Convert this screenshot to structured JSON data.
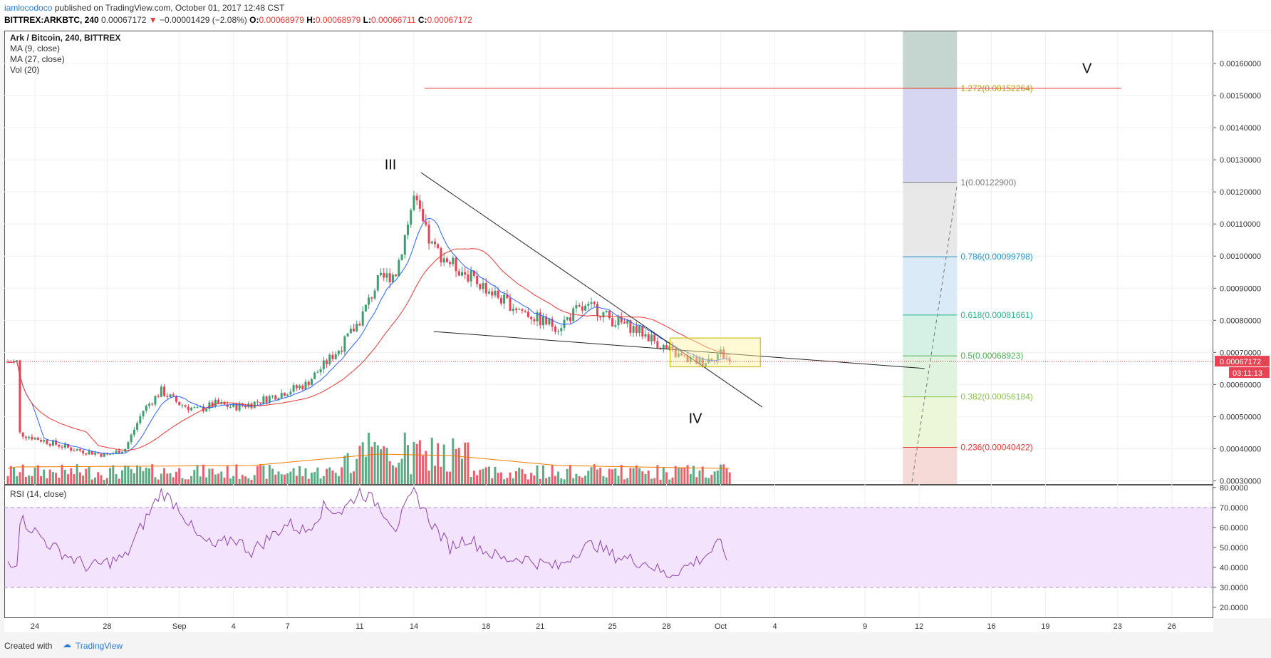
{
  "header": {
    "author": "iamlocodoco",
    "published": " published on TradingView.com, October 01, 2017 12:48 CST",
    "symbol": "BITTREX:ARKBTC, 240",
    "last": "0.00067172",
    "change": "−0.00001429 (−2.08%)",
    "o_label": "O:",
    "o": "0.00068979",
    "h_label": "H:",
    "h": "0.00068979",
    "l_label": "L:",
    "l": "0.00066711",
    "c_label": "C:",
    "c": "0.00067172"
  },
  "legend": {
    "title": "Ark / Bitcoin, 240, BITTREX",
    "ma9": "MA (9, close)",
    "ma27": "MA (27, close)",
    "vol": "Vol (20)",
    "rsi": "RSI (14, close)"
  },
  "price_tag": "0.00067172",
  "countdown": "03:11:13",
  "footer": {
    "created": "Created with",
    "brand": "TradingView"
  },
  "colors": {
    "up": "#3d9e6f",
    "down": "#e84354",
    "ma9": "#2962ff",
    "ma27": "#e53935",
    "vol_ma": "#f57c00",
    "rsi": "#8e44ad",
    "rsi_band": "#f3e3fc"
  },
  "chart_data": {
    "type": "candlestick",
    "price_axis": {
      "ticks": [
        "0.00160000",
        "0.00150000",
        "0.00140000",
        "0.00130000",
        "0.00120000",
        "0.00110000",
        "0.00100000",
        "0.00090000",
        "0.00080000",
        "0.00070000",
        "0.00060000",
        "0.00050000",
        "0.00040000",
        "0.00030000"
      ],
      "range": [
        0.00029,
        0.0017
      ]
    },
    "rsi_axis": {
      "ticks": [
        "80.0000",
        "70.0000",
        "60.0000",
        "50.0000",
        "40.0000",
        "30.0000",
        "20.0000"
      ],
      "range": [
        15,
        81
      ],
      "bands": [
        30,
        70
      ]
    },
    "x_ticks": [
      "24",
      "28",
      "Sep",
      "4",
      "7",
      "11",
      "14",
      "18",
      "21",
      "25",
      "28",
      "Oct",
      "4",
      "9",
      "12",
      "16",
      "19",
      "23",
      "26"
    ],
    "x_tick_days": [
      -7,
      -3,
      1,
      4,
      7,
      11,
      14,
      18,
      21,
      25,
      28,
      31,
      34,
      39,
      42,
      46,
      49,
      53,
      56
    ],
    "price_keyframes": [
      [
        -8,
        0.00045
      ],
      [
        -5,
        0.0004
      ],
      [
        -3,
        0.00038
      ],
      [
        -2,
        0.0004
      ],
      [
        -1,
        0.00052
      ],
      [
        0,
        0.00058
      ],
      [
        1,
        0.00054
      ],
      [
        2,
        0.00052
      ],
      [
        3,
        0.00054
      ],
      [
        4,
        0.00053
      ],
      [
        5,
        0.00054
      ],
      [
        6,
        0.00056
      ],
      [
        7,
        0.00058
      ],
      [
        8,
        0.0006
      ],
      [
        9,
        0.00066
      ],
      [
        10,
        0.00072
      ],
      [
        11,
        0.0008
      ],
      [
        12,
        0.00092
      ],
      [
        13,
        0.00095
      ],
      [
        14,
        0.00118
      ],
      [
        14.6,
        0.00108
      ],
      [
        15,
        0.00103
      ],
      [
        16,
        0.00098
      ],
      [
        17,
        0.00094
      ],
      [
        18,
        0.0009
      ],
      [
        19,
        0.00086
      ],
      [
        20,
        0.00083
      ],
      [
        21,
        0.0008
      ],
      [
        22,
        0.00078
      ],
      [
        23,
        0.00083
      ],
      [
        24,
        0.00084
      ],
      [
        25,
        0.0008
      ],
      [
        26,
        0.00078
      ],
      [
        27,
        0.00075
      ],
      [
        28,
        0.00071
      ],
      [
        29,
        0.00068
      ],
      [
        30,
        0.00067
      ],
      [
        31,
        0.0007
      ],
      [
        31.5,
        0.00067
      ]
    ],
    "rsi_keyframes": [
      [
        -8,
        66
      ],
      [
        -6,
        50
      ],
      [
        -4,
        40
      ],
      [
        -2,
        45
      ],
      [
        -1,
        62
      ],
      [
        0,
        78
      ],
      [
        1,
        70
      ],
      [
        2,
        55
      ],
      [
        3,
        50
      ],
      [
        4,
        55
      ],
      [
        5,
        48
      ],
      [
        6,
        55
      ],
      [
        7,
        62
      ],
      [
        8,
        58
      ],
      [
        9,
        70
      ],
      [
        10,
        68
      ],
      [
        11,
        78
      ],
      [
        12,
        72
      ],
      [
        13,
        60
      ],
      [
        14,
        78
      ],
      [
        15,
        62
      ],
      [
        16,
        50
      ],
      [
        17,
        55
      ],
      [
        18,
        48
      ],
      [
        19,
        44
      ],
      [
        20,
        45
      ],
      [
        21,
        42
      ],
      [
        22,
        40
      ],
      [
        23,
        48
      ],
      [
        24,
        52
      ],
      [
        25,
        46
      ],
      [
        26,
        44
      ],
      [
        27,
        42
      ],
      [
        28,
        36
      ],
      [
        29,
        40
      ],
      [
        30,
        45
      ],
      [
        31,
        52
      ],
      [
        31.5,
        43
      ]
    ],
    "annotations": [
      {
        "text": "III",
        "day": 12.7,
        "price": 0.00127
      },
      {
        "text": "IV",
        "day": 29.6,
        "price": 0.00048
      },
      {
        "text": "V",
        "day": 51.3,
        "price": 0.00157
      }
    ],
    "fib_levels": [
      {
        "label": "1.272(0.00152264)",
        "price": 0.00152264,
        "color": "#b5a100"
      },
      {
        "label": "1(0.00122900)",
        "price": 0.001229,
        "color": "#787878"
      },
      {
        "label": "0.786(0.00099798)",
        "price": 0.00099798,
        "color": "#2196c9"
      },
      {
        "label": "0.618(0.00081661)",
        "price": 0.00081661,
        "color": "#26b58a"
      },
      {
        "label": "0.5(0.00068923)",
        "price": 0.00068923,
        "color": "#4caf50"
      },
      {
        "label": "0.382(0.00056184)",
        "price": 0.00056184,
        "color": "#8bc34a"
      },
      {
        "label": "0.236(0.00040422)",
        "price": 0.00040422,
        "color": "#e53935"
      }
    ]
  }
}
